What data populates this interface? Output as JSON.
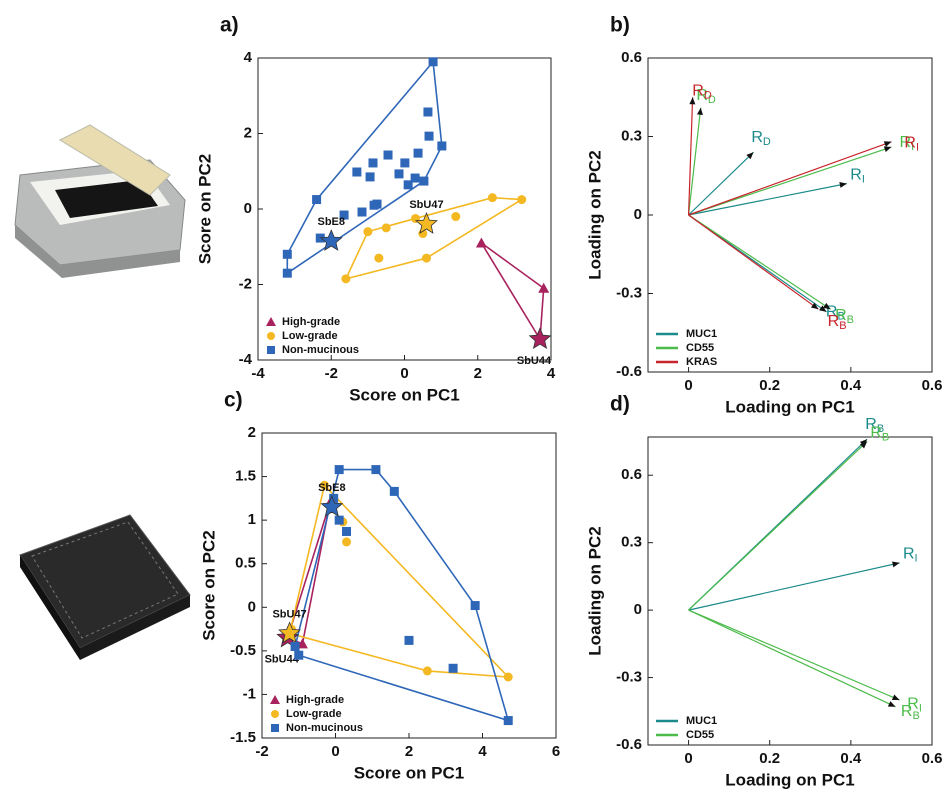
{
  "chart_data": [
    {
      "type": "scatter",
      "panel_label": "a)",
      "xlabel": "Score on PC1",
      "ylabel": "Score on PC2",
      "xlim": [
        -4,
        4
      ],
      "xticks": [
        -4,
        -2,
        0,
        2,
        4
      ],
      "ylim": [
        -4,
        4
      ],
      "yticks": [
        -4,
        -2,
        0,
        2,
        4
      ],
      "legend": "lower left",
      "series": [
        {
          "name": "High-grade",
          "color": "#a8235e",
          "marker": "triangle",
          "x": [
            2.1,
            3.8
          ],
          "y": [
            -0.9,
            -2.1
          ],
          "star": {
            "x": 3.7,
            "y": -3.45,
            "label": "SbU44"
          }
        },
        {
          "name": "Low-grade",
          "color": "#f4b822",
          "marker": "circle",
          "x": [
            -1.6,
            -1.0,
            -0.5,
            0.3,
            0.5,
            1.4,
            2.4,
            3.2,
            0.6,
            -0.7
          ],
          "y": [
            -1.85,
            -0.6,
            -0.5,
            -0.25,
            -0.65,
            -0.2,
            0.3,
            0.25,
            -1.3,
            -1.3
          ],
          "star": {
            "x": 0.6,
            "y": -0.4,
            "label": "SbU47"
          }
        },
        {
          "name": "Non-mucinous",
          "color": "#2f67b8",
          "marker": "square",
          "x": [
            -3.2,
            -3.2,
            -2.4,
            0.78,
            0.64,
            0.67,
            1.02,
            0.37,
            -0.45,
            -0.86,
            0.01,
            -1.3,
            -0.94,
            -0.15,
            0.29,
            0.53,
            0.1,
            -0.75,
            -0.83,
            -1.16,
            -1.65,
            -2.3
          ],
          "y": [
            -1.7,
            -1.2,
            0.25,
            3.9,
            2.57,
            1.93,
            1.67,
            1.48,
            1.43,
            1.22,
            1.22,
            0.98,
            0.85,
            0.93,
            0.82,
            0.74,
            0.64,
            0.13,
            0.1,
            -0.08,
            -0.16,
            -0.77
          ],
          "star": {
            "x": -2.0,
            "y": -0.85,
            "label": "SbE8"
          }
        }
      ]
    },
    {
      "type": "vector",
      "panel_label": "b)",
      "xlabel": "Loading on PC1",
      "ylabel": "Loading on PC2",
      "xlim": [
        -0.1,
        0.6
      ],
      "xticks": [
        0,
        0.2,
        0.4,
        0.6
      ],
      "ylim": [
        -0.6,
        0.6
      ],
      "yticks": [
        -0.6,
        -0.3,
        0,
        0.3,
        0.6
      ],
      "legend": "lower left",
      "series": [
        {
          "name": "MUC1",
          "color": "#1b8a8a",
          "vectors": [
            {
              "x": 0.16,
              "y": 0.24,
              "label": "R",
              "sub": "D"
            },
            {
              "x": 0.39,
              "y": 0.12,
              "label": "R",
              "sub": "I"
            },
            {
              "x": 0.34,
              "y": -0.37,
              "label": "R",
              "sub": "B"
            }
          ]
        },
        {
          "name": "CD55",
          "color": "#4cbb4a",
          "vectors": [
            {
              "x": 0.03,
              "y": 0.41,
              "label": "R",
              "sub": "D"
            },
            {
              "x": 0.5,
              "y": 0.26,
              "label": "R",
              "sub": "I"
            },
            {
              "x": 0.35,
              "y": -0.36,
              "label": "R",
              "sub": "B"
            }
          ]
        },
        {
          "name": "KRAS",
          "color": "#c7242b",
          "vectors": [
            {
              "x": 0.01,
              "y": 0.45,
              "label": "R",
              "sub": "D"
            },
            {
              "x": 0.5,
              "y": 0.28,
              "label": "R",
              "sub": "I"
            },
            {
              "x": 0.32,
              "y": -0.36,
              "label": "R",
              "sub": "B"
            }
          ]
        }
      ]
    },
    {
      "type": "scatter",
      "panel_label": "c)",
      "xlabel": "Score on PC1",
      "ylabel": "Score on PC2",
      "xlim": [
        -2,
        6
      ],
      "xticks": [
        -2,
        0,
        2,
        4,
        6
      ],
      "ylim": [
        -1.5,
        2
      ],
      "yticks": [
        -1.5,
        -1,
        -0.5,
        0,
        0.5,
        1,
        1.5,
        2
      ],
      "legend": "lower left",
      "series": [
        {
          "name": "High-grade",
          "color": "#a8235e",
          "marker": "triangle",
          "x": [
            -0.9,
            -0.15
          ],
          "y": [
            -0.42,
            1.2
          ],
          "star": {
            "x": -1.3,
            "y": -0.35,
            "label": "SbU44"
          }
        },
        {
          "name": "Low-grade",
          "color": "#f4b822",
          "marker": "circle",
          "x": [
            -0.3,
            0.2,
            0.3,
            2.5,
            4.7,
            -1.2
          ],
          "y": [
            1.4,
            0.98,
            0.75,
            -0.73,
            -0.8,
            -0.25
          ],
          "star": {
            "x": -1.25,
            "y": -0.3,
            "label": "SbU47"
          }
        },
        {
          "name": "Non-mucinous",
          "color": "#2f67b8",
          "marker": "square",
          "x": [
            0.1,
            1.1,
            1.6,
            3.8,
            4.7,
            -1.0,
            -0.05,
            0.1,
            0.3,
            2.0,
            3.2,
            -1.1
          ],
          "y": [
            1.58,
            1.58,
            1.33,
            0.02,
            -1.3,
            -0.55,
            1.25,
            1.0,
            0.87,
            -0.38,
            -0.7,
            -0.45
          ],
          "star": {
            "x": -0.1,
            "y": 1.15,
            "label": "SbE8"
          }
        }
      ]
    },
    {
      "type": "vector",
      "panel_label": "d)",
      "xlabel": "Loading on PC1",
      "ylabel": "Loading on PC2",
      "xlim": [
        -0.1,
        0.6
      ],
      "xticks": [
        0,
        0.2,
        0.4,
        0.6
      ],
      "ylim": [
        -0.6,
        0.77
      ],
      "yticks": [
        -0.6,
        -0.3,
        0,
        0.3,
        0.6
      ],
      "legend": "lower left",
      "series": [
        {
          "name": "MUC1",
          "color": "#1b8a8a",
          "vectors": [
            {
              "x": 0.44,
              "y": 0.76,
              "label": "R",
              "sub": "B"
            },
            {
              "x": 0.52,
              "y": 0.21,
              "label": "R",
              "sub": "I"
            }
          ]
        },
        {
          "name": "CD55",
          "color": "#4cbb4a",
          "vectors": [
            {
              "x": 0.44,
              "y": 0.75,
              "label": "R",
              "sub": "B"
            },
            {
              "x": 0.52,
              "y": -0.4,
              "label": "R",
              "sub": "I"
            },
            {
              "x": 0.51,
              "y": -0.43,
              "label": "R",
              "sub": "B"
            }
          ]
        }
      ]
    }
  ]
}
